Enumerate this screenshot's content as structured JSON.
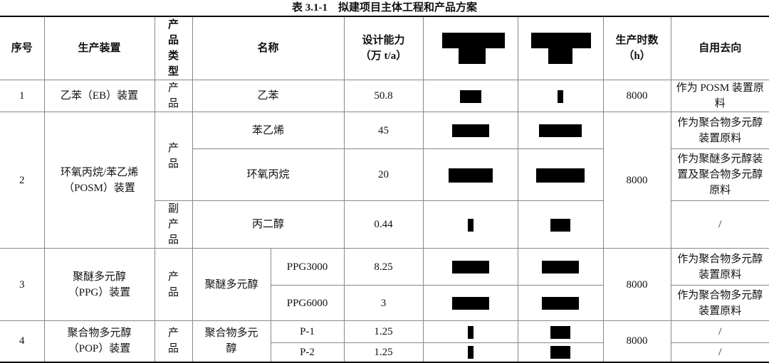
{
  "title": "表 3.1-1　拟建项目主体工程和产品方案",
  "table": {
    "header": [
      "序号",
      "生产装置",
      "产品类型",
      "名称",
      "设计能力（万 t/a）",
      "生产时数（h）",
      "自用去向"
    ],
    "groups": [
      {
        "no": 1,
        "unit": "乙苯（EB）装置",
        "hours": 8000,
        "items": [
          {
            "kind": "产品",
            "name": "乙苯",
            "capacity": 50.8,
            "use": "作为 POSM 装置原料"
          }
        ]
      },
      {
        "no": 2,
        "unit": "环氧丙烷/苯乙烯（POSM）装置",
        "hours": 8000,
        "items": [
          {
            "kind": "产品",
            "name": "苯乙烯",
            "capacity": 45,
            "use": "作为聚合物多元醇装置原料"
          },
          {
            "name": "环氧丙烷",
            "capacity": 20,
            "use": "作为聚醚多元醇装置及聚合物多元醇原料"
          },
          {
            "kind": "副产品",
            "name": "丙二醇",
            "capacity": 0.44,
            "use": "/"
          }
        ]
      },
      {
        "no": 3,
        "unit": "聚醚多元醇（PPG）装置",
        "kind": "产品",
        "name": "聚醚多元醇",
        "hours": 8000,
        "items": [
          {
            "grade": "PPG3000",
            "capacity": 8.25,
            "use": "作为聚合物多元醇装置原料"
          },
          {
            "grade": "PPG6000",
            "capacity": 3,
            "use": "作为聚合物多元醇装置原料"
          }
        ]
      },
      {
        "no": 4,
        "unit": "聚合物多元醇（POP）装置",
        "kind": "产品",
        "name": "聚合物多元醇",
        "hours": 8000,
        "items": [
          {
            "grade": "P-1",
            "capacity": 1.25,
            "use": "/"
          },
          {
            "grade": "P-2",
            "capacity": 1.25,
            "use": "/"
          }
        ]
      }
    ]
  }
}
